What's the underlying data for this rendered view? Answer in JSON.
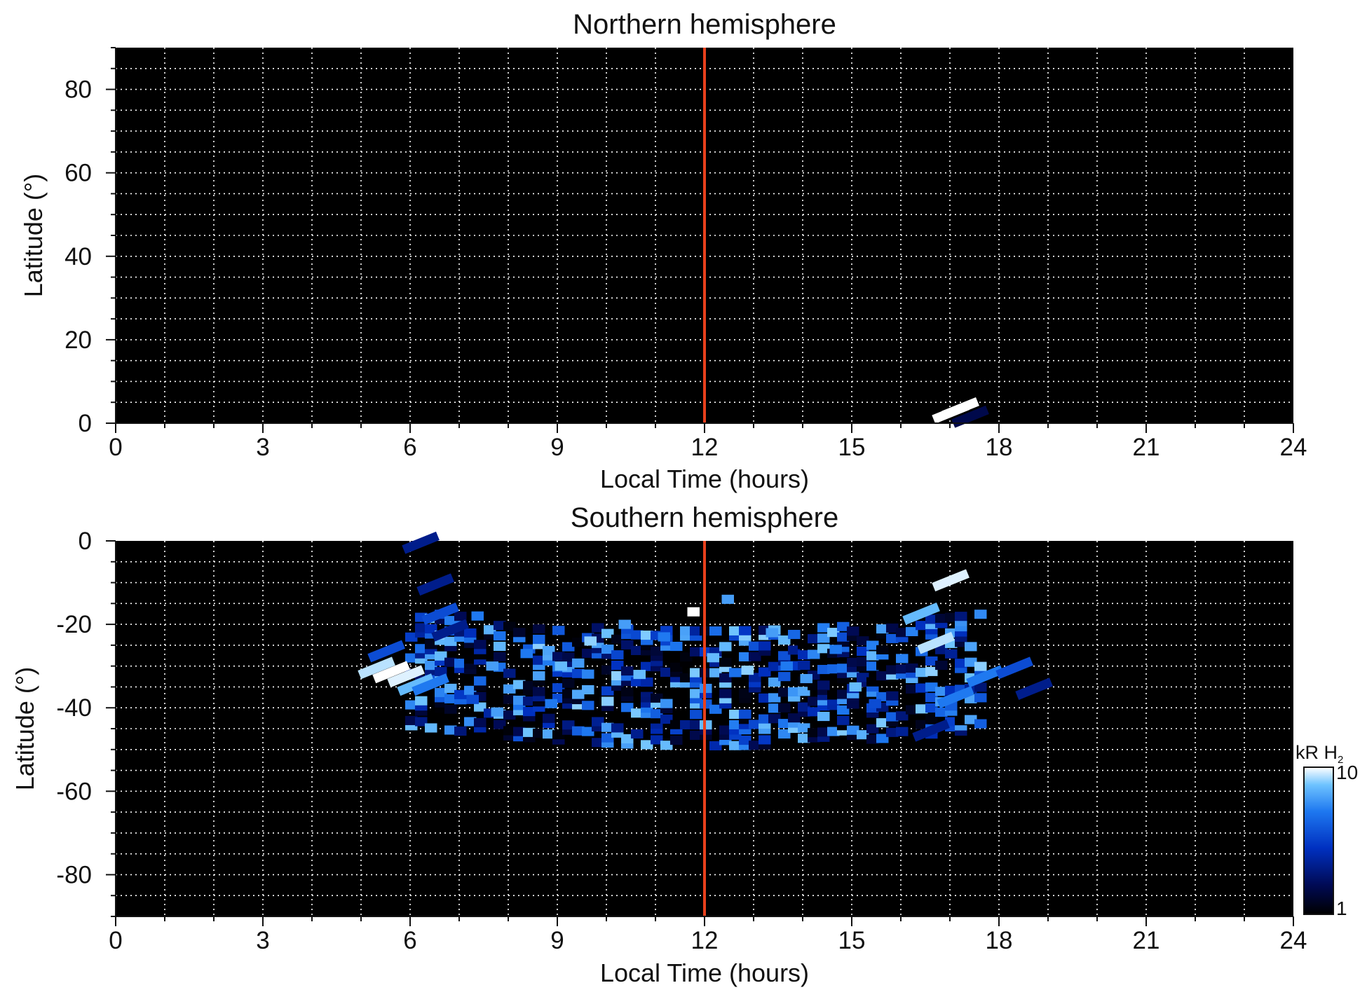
{
  "chart_data": [
    {
      "type": "heatmap",
      "title": "Northern hemisphere",
      "xlabel": "Local Time (hours)",
      "ylabel": "Latitude (°)",
      "xlim": [
        0,
        24
      ],
      "ylim": [
        0,
        90
      ],
      "x_ticks": [
        "0",
        "3",
        "6",
        "9",
        "12",
        "15",
        "18",
        "21",
        "24"
      ],
      "y_ticks": [
        "0",
        "20",
        "40",
        "60",
        "80"
      ],
      "grid": true,
      "background": "#000000",
      "reference_line": {
        "x": 12,
        "color": "#e8401c"
      },
      "cells": [
        {
          "x": 16.9,
          "y": 2,
          "value": 10
        },
        {
          "x": 17.1,
          "y": 3,
          "value": 10
        },
        {
          "x": 17.3,
          "y": 1,
          "value": 1.5
        }
      ]
    },
    {
      "type": "heatmap",
      "title": "Southern hemisphere",
      "xlabel": "Local Time (hours)",
      "ylabel": "Latitude (°)",
      "xlim": [
        0,
        24
      ],
      "ylim": [
        -90,
        0
      ],
      "x_ticks": [
        "0",
        "3",
        "6",
        "9",
        "12",
        "15",
        "18",
        "21",
        "24"
      ],
      "y_ticks": [
        "0",
        "-20",
        "-40",
        "-60",
        "-80"
      ],
      "grid": true,
      "background": "#000000",
      "reference_line": {
        "x": 12,
        "color": "#e8401c"
      },
      "region": {
        "x_range": [
          5,
          19
        ],
        "lat_range": [
          -48,
          -2
        ]
      },
      "cells": [
        {
          "x": 5.2,
          "y": -31,
          "value": 8
        },
        {
          "x": 5.5,
          "y": -32,
          "value": 10
        },
        {
          "x": 5.8,
          "y": -33,
          "value": 9
        },
        {
          "x": 6.0,
          "y": -35,
          "value": 6
        },
        {
          "x": 6.3,
          "y": -35,
          "value": 4
        },
        {
          "x": 5.4,
          "y": -27,
          "value": 3
        },
        {
          "x": 6.1,
          "y": -1,
          "value": 2
        },
        {
          "x": 6.4,
          "y": -11,
          "value": 2
        },
        {
          "x": 6.5,
          "y": -18,
          "value": 3
        },
        {
          "x": 6.7,
          "y": -22,
          "value": 2
        },
        {
          "x": 7.5,
          "y": -18,
          "value": 4
        },
        {
          "x": 7.8,
          "y": -30,
          "value": 5
        },
        {
          "x": 7.4,
          "y": -38,
          "value": 3
        },
        {
          "x": 7.9,
          "y": -41,
          "value": 5
        },
        {
          "x": 8.5,
          "y": -27,
          "value": 4
        },
        {
          "x": 9.2,
          "y": -30,
          "value": 6
        },
        {
          "x": 9.0,
          "y": -39,
          "value": 4
        },
        {
          "x": 9.8,
          "y": -24,
          "value": 7
        },
        {
          "x": 10.5,
          "y": -20,
          "value": 5
        },
        {
          "x": 10.8,
          "y": -32,
          "value": 6
        },
        {
          "x": 11.3,
          "y": -23,
          "value": 4
        },
        {
          "x": 11.9,
          "y": -17,
          "value": 10
        },
        {
          "x": 12.3,
          "y": -28,
          "value": 6
        },
        {
          "x": 12.6,
          "y": -14,
          "value": 5
        },
        {
          "x": 13.0,
          "y": -31,
          "value": 7
        },
        {
          "x": 13.5,
          "y": -22,
          "value": 5
        },
        {
          "x": 13.8,
          "y": -30,
          "value": 4
        },
        {
          "x": 14.2,
          "y": -33,
          "value": 5
        },
        {
          "x": 14.8,
          "y": -26,
          "value": 4
        },
        {
          "x": 15.2,
          "y": -35,
          "value": 6
        },
        {
          "x": 15.6,
          "y": -39,
          "value": 3
        },
        {
          "x": 16.3,
          "y": -18,
          "value": 6
        },
        {
          "x": 16.6,
          "y": -25,
          "value": 8
        },
        {
          "x": 16.9,
          "y": -10,
          "value": 9
        },
        {
          "x": 17.0,
          "y": -38,
          "value": 4
        },
        {
          "x": 17.6,
          "y": -33,
          "value": 4
        },
        {
          "x": 18.2,
          "y": -31,
          "value": 3
        },
        {
          "x": 18.6,
          "y": -36,
          "value": 2
        },
        {
          "x": 16.5,
          "y": -46,
          "value": 2
        }
      ]
    }
  ],
  "colorbar": {
    "label_main": "kR H",
    "label_sub": "2",
    "min_label": "1",
    "max_label": "10",
    "scale": "log",
    "colors": [
      "#000000",
      "#000a55",
      "#0030c0",
      "#1e78f0",
      "#6ec3ff",
      "#ffffff"
    ]
  }
}
